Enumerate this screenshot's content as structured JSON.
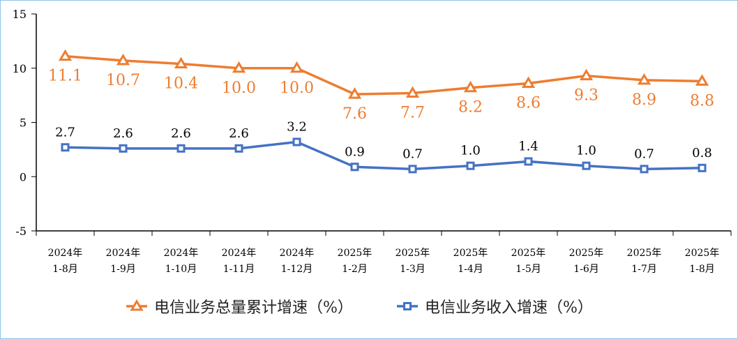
{
  "chart_data": {
    "type": "line",
    "categories": [
      "2024年\n1-8月",
      "2024年\n1-9月",
      "2024年\n1-10月",
      "2024年\n1-11月",
      "2024年\n1-12月",
      "2025年\n1-2月",
      "2025年\n1-3月",
      "2025年\n1-4月",
      "2025年\n1-5月",
      "2025年\n1-6月",
      "2025年\n1-7月",
      "2025年\n1-8月"
    ],
    "ylim": [
      -5,
      15
    ],
    "yticks": [
      15,
      10,
      5,
      0,
      -5
    ],
    "grid": false,
    "legend_position": "bottom",
    "series": [
      {
        "name": "电信业务总量累计增速（%）",
        "color": "#ed7d31",
        "marker": "triangle",
        "values": [
          11.1,
          10.7,
          10.4,
          10.0,
          10.0,
          7.6,
          7.7,
          8.2,
          8.6,
          9.3,
          8.9,
          8.8
        ],
        "labels": [
          "11.1",
          "10.7",
          "10.4",
          "10.0",
          "10.0",
          "7.6",
          "7.7",
          "8.2",
          "8.6",
          "9.3",
          "8.9",
          "8.8"
        ]
      },
      {
        "name": "电信业务收入增速（%）",
        "color": "#4472c4",
        "marker": "square",
        "values": [
          2.7,
          2.6,
          2.6,
          2.6,
          3.2,
          0.9,
          0.7,
          1.0,
          1.4,
          1.0,
          0.7,
          0.8
        ],
        "labels": [
          "2.7",
          "2.6",
          "2.6",
          "2.6",
          "3.2",
          "0.9",
          "0.7",
          "1.0",
          "1.4",
          "1.0",
          "0.7",
          "0.8"
        ]
      }
    ]
  }
}
